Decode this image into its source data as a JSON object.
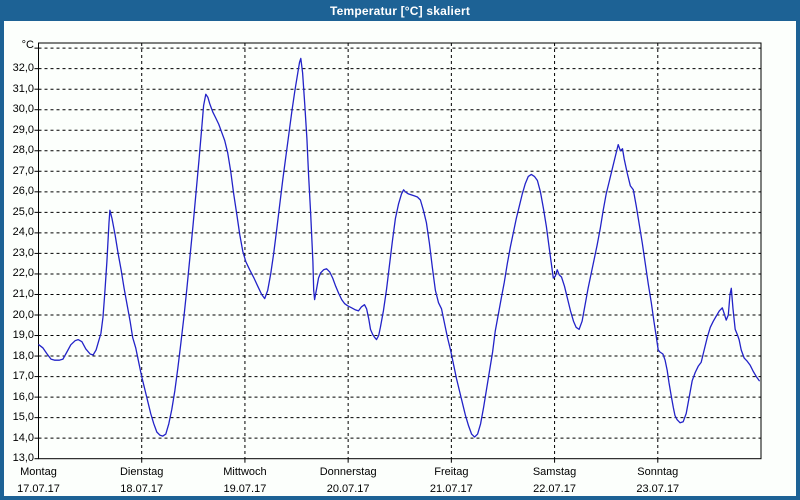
{
  "window": {
    "title": "Temperatur [°C] skaliert"
  },
  "colors": {
    "frame_blue": "#1d6295",
    "title_text": "#ffffff",
    "background": "#fcfffc",
    "grid": "#000000",
    "line_blue": "#2323c8"
  },
  "chart_data": {
    "type": "line",
    "title": "Temperatur [°C] skaliert",
    "ylabel": "°C",
    "grid": true,
    "y_axis": {
      "unit_label": "°C",
      "min": 13,
      "max": 33.25,
      "tick_step": 1,
      "tick_values": [
        32,
        31,
        30,
        29,
        28,
        27,
        26,
        25,
        24,
        23,
        22,
        21,
        20,
        19,
        18,
        17,
        16,
        15,
        14,
        13
      ],
      "tick_labels": [
        "32,0",
        "31,0",
        "30,0",
        "29,0",
        "28,0",
        "27,0",
        "26,0",
        "25,0",
        "24,0",
        "23,0",
        "22,0",
        "21,0",
        "20,0",
        "19,0",
        "18,0",
        "17,0",
        "16,0",
        "15,0",
        "14,0",
        "13,0"
      ]
    },
    "x_axis": {
      "hours_total": 168,
      "days": [
        {
          "name": "Montag",
          "date": "17.07.17"
        },
        {
          "name": "Dienstag",
          "date": "18.07.17"
        },
        {
          "name": "Mittwoch",
          "date": "19.07.17"
        },
        {
          "name": "Donnerstag",
          "date": "20.07.17"
        },
        {
          "name": "Freitag",
          "date": "21.07.17"
        },
        {
          "name": "Samstag",
          "date": "22.07.17"
        },
        {
          "name": "Sonntag",
          "date": "23.07.17"
        }
      ]
    },
    "series": [
      {
        "name": "Temperatur",
        "points": [
          [
            0.1,
            18.55
          ],
          [
            1,
            18.4
          ],
          [
            2,
            18.1
          ],
          [
            2.9,
            17.85
          ],
          [
            3.8,
            17.8
          ],
          [
            4.8,
            17.8
          ],
          [
            5.7,
            17.85
          ],
          [
            6.6,
            18.2
          ],
          [
            7.5,
            18.55
          ],
          [
            8.5,
            18.75
          ],
          [
            9.2,
            18.8
          ],
          [
            10.1,
            18.7
          ],
          [
            11,
            18.35
          ],
          [
            12,
            18.1
          ],
          [
            12.7,
            18.05
          ],
          [
            13.4,
            18.3
          ],
          [
            14.1,
            18.8
          ],
          [
            14.5,
            19.1
          ],
          [
            15,
            19.9
          ],
          [
            15.4,
            21
          ],
          [
            15.9,
            22.6
          ],
          [
            16.4,
            24.5
          ],
          [
            16.6,
            25.1
          ],
          [
            17.1,
            24.7
          ],
          [
            17.8,
            23.9
          ],
          [
            18.5,
            23
          ],
          [
            19.2,
            22.2
          ],
          [
            19.9,
            21.3
          ],
          [
            20.6,
            20.5
          ],
          [
            21.3,
            19.7
          ],
          [
            21.9,
            18.9
          ],
          [
            22.6,
            18.4
          ],
          [
            23.3,
            17.7
          ],
          [
            24,
            17
          ],
          [
            24.7,
            16.4
          ],
          [
            25.4,
            15.8
          ],
          [
            26.1,
            15.2
          ],
          [
            26.8,
            14.7
          ],
          [
            27.5,
            14.3
          ],
          [
            28.2,
            14.15
          ],
          [
            28.9,
            14.1
          ],
          [
            29.6,
            14.2
          ],
          [
            30.3,
            14.7
          ],
          [
            31,
            15.4
          ],
          [
            31.7,
            16.3
          ],
          [
            32.4,
            17.4
          ],
          [
            33.1,
            18.6
          ],
          [
            33.8,
            19.9
          ],
          [
            34.5,
            21.3
          ],
          [
            35.2,
            22.8
          ],
          [
            35.9,
            24.3
          ],
          [
            36.6,
            25.9
          ],
          [
            37.3,
            27.5
          ],
          [
            38,
            29.2
          ],
          [
            38.4,
            30.2
          ],
          [
            38.9,
            30.75
          ],
          [
            39.4,
            30.6
          ],
          [
            39.8,
            30.3
          ],
          [
            40.5,
            29.9
          ],
          [
            41.2,
            29.6
          ],
          [
            41.9,
            29.3
          ],
          [
            42.6,
            28.9
          ],
          [
            43.3,
            28.5
          ],
          [
            44,
            27.9
          ],
          [
            44.7,
            27
          ],
          [
            45.4,
            25.9
          ],
          [
            46.1,
            24.9
          ],
          [
            46.8,
            23.9
          ],
          [
            47.5,
            23.1
          ],
          [
            48.2,
            22.6
          ],
          [
            49.1,
            22.2
          ],
          [
            50.1,
            21.8
          ],
          [
            51,
            21.4
          ],
          [
            51.9,
            21
          ],
          [
            52.6,
            20.8
          ],
          [
            53.3,
            21.2
          ],
          [
            54,
            22
          ],
          [
            54.7,
            23
          ],
          [
            55.4,
            24.2
          ],
          [
            56.1,
            25.4
          ],
          [
            56.8,
            26.6
          ],
          [
            57.5,
            27.7
          ],
          [
            58.2,
            28.8
          ],
          [
            58.9,
            29.9
          ],
          [
            59.6,
            30.9
          ],
          [
            60.3,
            31.8
          ],
          [
            60.7,
            32.3
          ],
          [
            61,
            32.5
          ],
          [
            61.4,
            31.8
          ],
          [
            61.9,
            30.3
          ],
          [
            62.4,
            28.6
          ],
          [
            62.8,
            26.8
          ],
          [
            63.3,
            24.9
          ],
          [
            63.8,
            22.6
          ],
          [
            64,
            21.2
          ],
          [
            64.2,
            20.75
          ],
          [
            64.7,
            21.3
          ],
          [
            65.1,
            21.8
          ],
          [
            65.6,
            22.05
          ],
          [
            66.3,
            22.2
          ],
          [
            67,
            22.25
          ],
          [
            67.7,
            22.1
          ],
          [
            68.4,
            21.8
          ],
          [
            69.1,
            21.4
          ],
          [
            69.8,
            21.05
          ],
          [
            70.5,
            20.75
          ],
          [
            71.2,
            20.55
          ],
          [
            71.9,
            20.45
          ],
          [
            72.8,
            20.35
          ],
          [
            73.7,
            20.25
          ],
          [
            74.4,
            20.2
          ],
          [
            75.1,
            20.4
          ],
          [
            75.8,
            20.5
          ],
          [
            76.3,
            20.3
          ],
          [
            76.8,
            19.8
          ],
          [
            77.2,
            19.3
          ],
          [
            77.7,
            19.05
          ],
          [
            78.2,
            18.9
          ],
          [
            78.6,
            18.8
          ],
          [
            79.1,
            19
          ],
          [
            79.5,
            19.4
          ],
          [
            80.2,
            20.2
          ],
          [
            80.9,
            21.2
          ],
          [
            81.6,
            22.4
          ],
          [
            82.3,
            23.6
          ],
          [
            83,
            24.7
          ],
          [
            83.7,
            25.4
          ],
          [
            84.4,
            25.9
          ],
          [
            84.9,
            26.1
          ],
          [
            85.3,
            26
          ],
          [
            86,
            25.9
          ],
          [
            86.7,
            25.85
          ],
          [
            87.4,
            25.8
          ],
          [
            88.1,
            25.75
          ],
          [
            88.8,
            25.6
          ],
          [
            89.5,
            25.1
          ],
          [
            90.2,
            24.5
          ],
          [
            90.9,
            23.5
          ],
          [
            91.6,
            22.3
          ],
          [
            92.3,
            21.2
          ],
          [
            93,
            20.6
          ],
          [
            93.7,
            20.3
          ],
          [
            94.4,
            19.6
          ],
          [
            95.1,
            18.9
          ],
          [
            95.8,
            18.3
          ],
          [
            96.5,
            17.6
          ],
          [
            97.2,
            16.9
          ],
          [
            97.9,
            16.3
          ],
          [
            98.6,
            15.7
          ],
          [
            99.3,
            15.1
          ],
          [
            100,
            14.6
          ],
          [
            100.7,
            14.2
          ],
          [
            101.4,
            14.05
          ],
          [
            102.1,
            14.2
          ],
          [
            102.8,
            14.7
          ],
          [
            103.5,
            15.5
          ],
          [
            104.2,
            16.4
          ],
          [
            104.9,
            17.3
          ],
          [
            105.6,
            18.2
          ],
          [
            106.2,
            19.2
          ],
          [
            106.9,
            20
          ],
          [
            107.6,
            20.8
          ],
          [
            108.3,
            21.6
          ],
          [
            109,
            22.5
          ],
          [
            109.7,
            23.3
          ],
          [
            110.4,
            24
          ],
          [
            111.1,
            24.7
          ],
          [
            111.8,
            25.3
          ],
          [
            112.5,
            25.9
          ],
          [
            113.2,
            26.4
          ],
          [
            113.9,
            26.75
          ],
          [
            114.6,
            26.85
          ],
          [
            115.3,
            26.75
          ],
          [
            116,
            26.55
          ],
          [
            116.7,
            26
          ],
          [
            117.4,
            25.2
          ],
          [
            118.1,
            24.3
          ],
          [
            118.8,
            23.2
          ],
          [
            119.3,
            22.4
          ],
          [
            119.7,
            21.8
          ],
          [
            120.2,
            21.9
          ],
          [
            120.6,
            22.2
          ],
          [
            121.1,
            21.95
          ],
          [
            121.6,
            21.85
          ],
          [
            122.3,
            21.4
          ],
          [
            123,
            20.8
          ],
          [
            123.7,
            20.2
          ],
          [
            124.4,
            19.7
          ],
          [
            125,
            19.4
          ],
          [
            125.7,
            19.3
          ],
          [
            126.4,
            19.7
          ],
          [
            127.1,
            20.5
          ],
          [
            127.8,
            21.3
          ],
          [
            128.5,
            22
          ],
          [
            129.2,
            22.7
          ],
          [
            129.9,
            23.4
          ],
          [
            130.6,
            24.2
          ],
          [
            131.3,
            25.1
          ],
          [
            132,
            25.9
          ],
          [
            132.7,
            26.5
          ],
          [
            133.4,
            27.1
          ],
          [
            134.1,
            27.7
          ],
          [
            134.8,
            28.3
          ],
          [
            135.3,
            28
          ],
          [
            135.8,
            28.1
          ],
          [
            136.2,
            27.6
          ],
          [
            136.9,
            26.9
          ],
          [
            137.6,
            26.3
          ],
          [
            138.3,
            26.1
          ],
          [
            139,
            25.3
          ],
          [
            139.7,
            24.4
          ],
          [
            140.4,
            23.5
          ],
          [
            141.1,
            22.5
          ],
          [
            141.8,
            21.5
          ],
          [
            142.5,
            20.6
          ],
          [
            143.1,
            19.7
          ],
          [
            143.6,
            19
          ],
          [
            144.1,
            18.3
          ],
          [
            144.5,
            18.2
          ],
          [
            145.2,
            18.1
          ],
          [
            145.7,
            17.8
          ],
          [
            146.2,
            17.3
          ],
          [
            146.6,
            16.7
          ],
          [
            147.1,
            16.1
          ],
          [
            147.6,
            15.5
          ],
          [
            148,
            15.1
          ],
          [
            148.5,
            14.9
          ],
          [
            149.2,
            14.75
          ],
          [
            149.9,
            14.8
          ],
          [
            150.6,
            15.2
          ],
          [
            151.3,
            16
          ],
          [
            152,
            16.8
          ],
          [
            152.7,
            17.2
          ],
          [
            153.4,
            17.5
          ],
          [
            154.1,
            17.7
          ],
          [
            154.8,
            18.3
          ],
          [
            155.5,
            18.9
          ],
          [
            156.2,
            19.4
          ],
          [
            156.9,
            19.7
          ],
          [
            157.6,
            19.95
          ],
          [
            158.3,
            20.2
          ],
          [
            159,
            20.35
          ],
          [
            159.4,
            20.1
          ],
          [
            159.9,
            19.75
          ],
          [
            160.4,
            20
          ],
          [
            160.8,
            21
          ],
          [
            161.1,
            21.3
          ],
          [
            161.5,
            20.3
          ],
          [
            162,
            19.3
          ],
          [
            162.5,
            19.05
          ],
          [
            162.9,
            18.8
          ],
          [
            163.4,
            18.3
          ],
          [
            164.1,
            17.9
          ],
          [
            164.8,
            17.75
          ],
          [
            165.5,
            17.55
          ],
          [
            166.2,
            17.25
          ],
          [
            166.9,
            17
          ],
          [
            167.6,
            16.8
          ]
        ]
      }
    ]
  }
}
